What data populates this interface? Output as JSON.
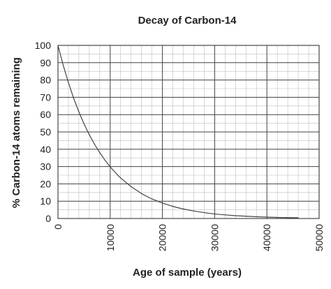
{
  "chart_data": {
    "type": "line",
    "title": "Decay of Carbon-14",
    "xlabel": "Age of sample (years)",
    "ylabel": "% Carbon-14 atoms remaining",
    "xlim": [
      0,
      50000
    ],
    "ylim": [
      0,
      100
    ],
    "x_ticks": [
      0,
      10000,
      20000,
      30000,
      40000,
      50000
    ],
    "y_ticks": [
      0,
      10,
      20,
      30,
      40,
      50,
      60,
      70,
      80,
      90,
      100
    ],
    "x_minor_step": 2000,
    "y_minor_step": 5,
    "grid": true,
    "x_tick_orientation": "vertical",
    "series": [
      {
        "color": "#444444",
        "x": [
          0,
          1000,
          2000,
          3000,
          4000,
          5000,
          5730,
          6000,
          7000,
          8000,
          9000,
          10000,
          11460,
          12000,
          14000,
          16000,
          17190,
          18000,
          20000,
          22000,
          22920,
          24000,
          26000,
          28000,
          28650,
          30000,
          32000,
          34000,
          36000,
          38000,
          40000,
          42000,
          44000,
          46000
        ],
        "y": [
          100,
          88.6,
          78.5,
          69.5,
          61.6,
          54.6,
          50,
          48.4,
          42.9,
          38.0,
          33.7,
          29.8,
          25,
          23.4,
          18.4,
          14.4,
          12.5,
          11.3,
          8.9,
          7.0,
          6.25,
          5.5,
          4.3,
          3.4,
          3.1,
          2.6,
          2.1,
          1.6,
          1.3,
          1.0,
          0.8,
          0.6,
          0.5,
          0.4
        ]
      }
    ]
  }
}
